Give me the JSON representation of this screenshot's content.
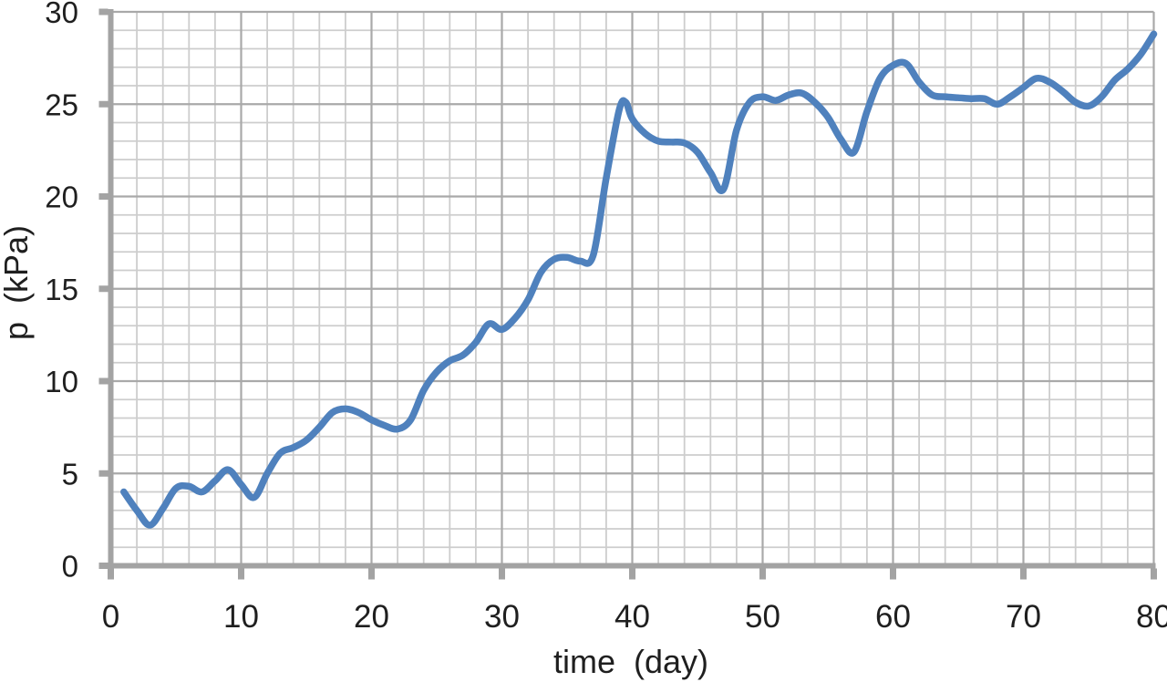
{
  "chart_data": {
    "type": "line",
    "title": "",
    "xlabel": "time  (day)",
    "ylabel": "p  (kPa)",
    "xlim": [
      0,
      80
    ],
    "ylim": [
      0,
      30
    ],
    "x_major_ticks": [
      0,
      10,
      20,
      30,
      40,
      50,
      60,
      70,
      80
    ],
    "y_major_ticks": [
      0,
      5,
      10,
      15,
      20,
      25,
      30
    ],
    "x_minor_step": 2,
    "y_minor_step": 1,
    "grid": "major and minor, both axes",
    "legend_position": "none",
    "series": [
      {
        "name": "p",
        "smooth": true,
        "points": [
          [
            1,
            4.0
          ],
          [
            2,
            3.0
          ],
          [
            3,
            2.2
          ],
          [
            4,
            3.1
          ],
          [
            5,
            4.2
          ],
          [
            6,
            4.3
          ],
          [
            7,
            4.0
          ],
          [
            8,
            4.6
          ],
          [
            9,
            5.2
          ],
          [
            10,
            4.4
          ],
          [
            11,
            3.7
          ],
          [
            12,
            5.0
          ],
          [
            13,
            6.1
          ],
          [
            14,
            6.4
          ],
          [
            15,
            6.8
          ],
          [
            16,
            7.5
          ],
          [
            17,
            8.3
          ],
          [
            18,
            8.5
          ],
          [
            19,
            8.3
          ],
          [
            20,
            7.9
          ],
          [
            21,
            7.6
          ],
          [
            22,
            7.4
          ],
          [
            23,
            7.9
          ],
          [
            24,
            9.5
          ],
          [
            25,
            10.5
          ],
          [
            26,
            11.1
          ],
          [
            27,
            11.4
          ],
          [
            28,
            12.1
          ],
          [
            29,
            13.1
          ],
          [
            30,
            12.8
          ],
          [
            31,
            13.4
          ],
          [
            32,
            14.4
          ],
          [
            33,
            15.9
          ],
          [
            34,
            16.6
          ],
          [
            35,
            16.7
          ],
          [
            36,
            16.5
          ],
          [
            37,
            16.8
          ],
          [
            38,
            21.0
          ],
          [
            39,
            24.7
          ],
          [
            39.5,
            25.1
          ],
          [
            40,
            24.2
          ],
          [
            41,
            23.4
          ],
          [
            42,
            23.0
          ],
          [
            43,
            22.95
          ],
          [
            44,
            22.9
          ],
          [
            45,
            22.4
          ],
          [
            46,
            21.3
          ],
          [
            47,
            20.4
          ],
          [
            48,
            23.6
          ],
          [
            49,
            25.1
          ],
          [
            50,
            25.4
          ],
          [
            51,
            25.2
          ],
          [
            52,
            25.5
          ],
          [
            53,
            25.6
          ],
          [
            54,
            25.1
          ],
          [
            55,
            24.3
          ],
          [
            56,
            23.1
          ],
          [
            57,
            22.4
          ],
          [
            58,
            24.6
          ],
          [
            59,
            26.4
          ],
          [
            60,
            27.1
          ],
          [
            61,
            27.2
          ],
          [
            62,
            26.2
          ],
          [
            63,
            25.5
          ],
          [
            64,
            25.4
          ],
          [
            65,
            25.35
          ],
          [
            66,
            25.3
          ],
          [
            67,
            25.3
          ],
          [
            68,
            25.0
          ],
          [
            69,
            25.4
          ],
          [
            70,
            25.9
          ],
          [
            71,
            26.4
          ],
          [
            72,
            26.2
          ],
          [
            73,
            25.7
          ],
          [
            74,
            25.1
          ],
          [
            75,
            24.9
          ],
          [
            76,
            25.4
          ],
          [
            77,
            26.3
          ],
          [
            78,
            26.9
          ],
          [
            79,
            27.7
          ],
          [
            80,
            28.8
          ]
        ]
      }
    ]
  },
  "style": {
    "line_color": "#4F81BD",
    "axis_color": "#A3A3A3",
    "major_grid_color": "#A9A9A9",
    "minor_grid_color": "#CDCDCD",
    "text_color": "#1F1F1F",
    "background_color": "#FFFFFF"
  }
}
